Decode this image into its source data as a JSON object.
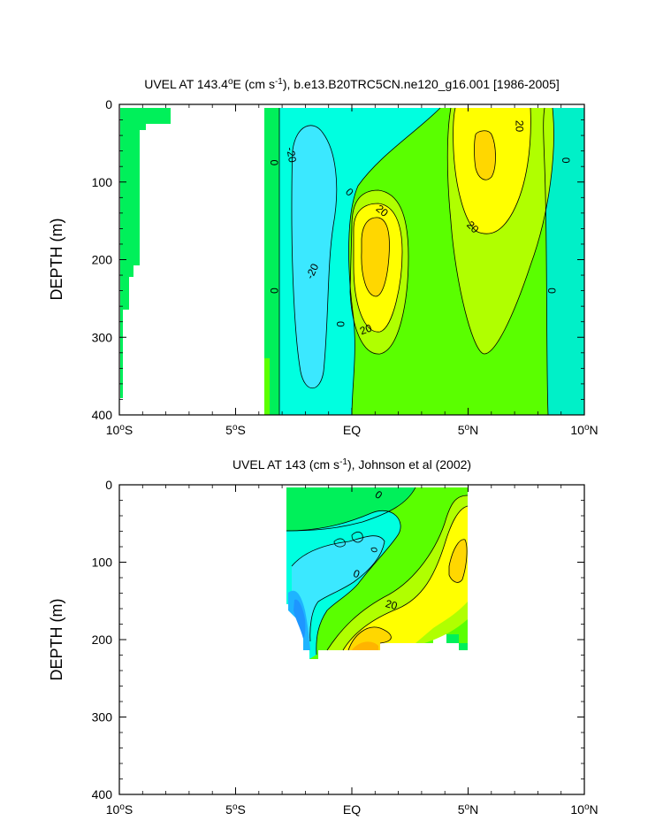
{
  "chart_data": [
    {
      "type": "contour",
      "title_main": "UVEL AT 143.4",
      "title_sup1": "o",
      "title_mid": "E (cm s",
      "title_sup2": "-1",
      "title_end": "), b.e13.B20TRC5CN.ne120_g16.001 [1986-2005]",
      "ylabel": "DEPTH (m)",
      "xlim": [
        -10,
        10
      ],
      "ylim": [
        400,
        0
      ],
      "x_ticks": [
        {
          "value": -10,
          "label": "10",
          "sup": "o",
          "suffix": "S"
        },
        {
          "value": -5,
          "label": "5",
          "sup": "o",
          "suffix": "S"
        },
        {
          "value": 0,
          "label": "EQ",
          "sup": "",
          "suffix": ""
        },
        {
          "value": 5,
          "label": "5",
          "sup": "o",
          "suffix": "N"
        },
        {
          "value": 10,
          "label": "10",
          "sup": "o",
          "suffix": "N"
        }
      ],
      "y_ticks": [
        {
          "value": 0,
          "label": "0"
        },
        {
          "value": 100,
          "label": "100"
        },
        {
          "value": 200,
          "label": "200"
        },
        {
          "value": 300,
          "label": "300"
        },
        {
          "value": 400,
          "label": "400"
        }
      ],
      "contour_labels": [
        {
          "text": "0",
          "x": -3.35,
          "y": 75,
          "rot": 90
        },
        {
          "text": "-20",
          "x": -2.6,
          "y": 65,
          "rot": 80
        },
        {
          "text": "0",
          "x": -0.1,
          "y": 113,
          "rot": 45
        },
        {
          "text": "20",
          "x": 1.3,
          "y": 137,
          "rot": 40
        },
        {
          "text": "-20",
          "x": -1.7,
          "y": 215,
          "rot": -65
        },
        {
          "text": "0",
          "x": -3.35,
          "y": 240,
          "rot": 90
        },
        {
          "text": "0",
          "x": -0.5,
          "y": 283,
          "rot": 90
        },
        {
          "text": "20",
          "x": 0.6,
          "y": 290,
          "rot": -20
        },
        {
          "text": "20",
          "x": 7.2,
          "y": 28,
          "rot": 90
        },
        {
          "text": "0",
          "x": 9.2,
          "y": 72,
          "rot": 90
        },
        {
          "text": "20",
          "x": 5.2,
          "y": 158,
          "rot": 45
        },
        {
          "text": "0",
          "x": 8.6,
          "y": 240,
          "rot": 90
        }
      ]
    },
    {
      "type": "contour",
      "title_main": "UVEL AT 143 (cm s",
      "title_sup": "-1",
      "title_end": "), Johnson et al (2002)",
      "ylabel": "DEPTH (m)",
      "xlim": [
        -10,
        10
      ],
      "ylim": [
        400,
        0
      ],
      "x_ticks": [
        {
          "value": -10,
          "label": "10",
          "sup": "o",
          "suffix": "S"
        },
        {
          "value": -5,
          "label": "5",
          "sup": "o",
          "suffix": "S"
        },
        {
          "value": 0,
          "label": "EQ",
          "sup": "",
          "suffix": ""
        },
        {
          "value": 5,
          "label": "5",
          "sup": "o",
          "suffix": "N"
        },
        {
          "value": 10,
          "label": "10",
          "sup": "o",
          "suffix": "N"
        }
      ],
      "y_ticks": [
        {
          "value": 0,
          "label": "0"
        },
        {
          "value": 100,
          "label": "100"
        },
        {
          "value": 200,
          "label": "200"
        },
        {
          "value": 300,
          "label": "300"
        },
        {
          "value": 400,
          "label": "400"
        }
      ],
      "contour_labels": [
        {
          "text": "0",
          "x": 1.15,
          "y": 13,
          "rot": 35
        },
        {
          "text": "0",
          "x": 0.2,
          "y": 115,
          "rot": 20
        },
        {
          "text": "20",
          "x": 1.7,
          "y": 155,
          "rot": 15
        }
      ]
    }
  ]
}
